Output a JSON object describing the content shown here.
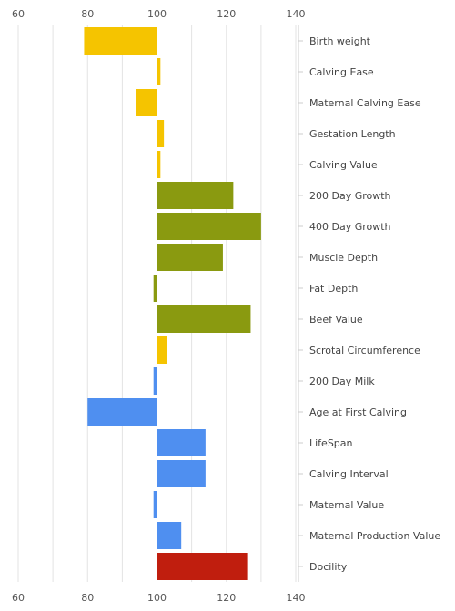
{
  "chart_data": {
    "type": "bar",
    "orientation": "horizontal",
    "baseline": 100,
    "xlim": [
      60,
      140
    ],
    "x_ticks": [
      60,
      80,
      100,
      120,
      140
    ],
    "grid": true,
    "legend": "none",
    "title": "",
    "xlabel": "",
    "ylabel": "",
    "categories": [
      "Birth weight",
      "Calving Ease",
      "Maternal Calving Ease",
      "Gestation Length",
      "Calving Value",
      "200 Day Growth",
      "400 Day Growth",
      "Muscle Depth",
      "Fat Depth",
      "Beef Value",
      "Scrotal Circumference",
      "200 Day Milk",
      "Age at First Calving",
      "LifeSpan",
      "Calving Interval",
      "Maternal Value",
      "Maternal Production Value",
      "Docility"
    ],
    "values": [
      79,
      101,
      94,
      102,
      101,
      122,
      130,
      119,
      99,
      127,
      103,
      99,
      80,
      114,
      114,
      99,
      107,
      126
    ],
    "colors": [
      "#f5c400",
      "#f5c400",
      "#f5c400",
      "#f5c400",
      "#f5c400",
      "#8a9a10",
      "#8a9a10",
      "#8a9a10",
      "#8a9a10",
      "#8a9a10",
      "#f5c400",
      "#4f8ff0",
      "#4f8ff0",
      "#4f8ff0",
      "#4f8ff0",
      "#4f8ff0",
      "#4f8ff0",
      "#c01e0e"
    ]
  }
}
